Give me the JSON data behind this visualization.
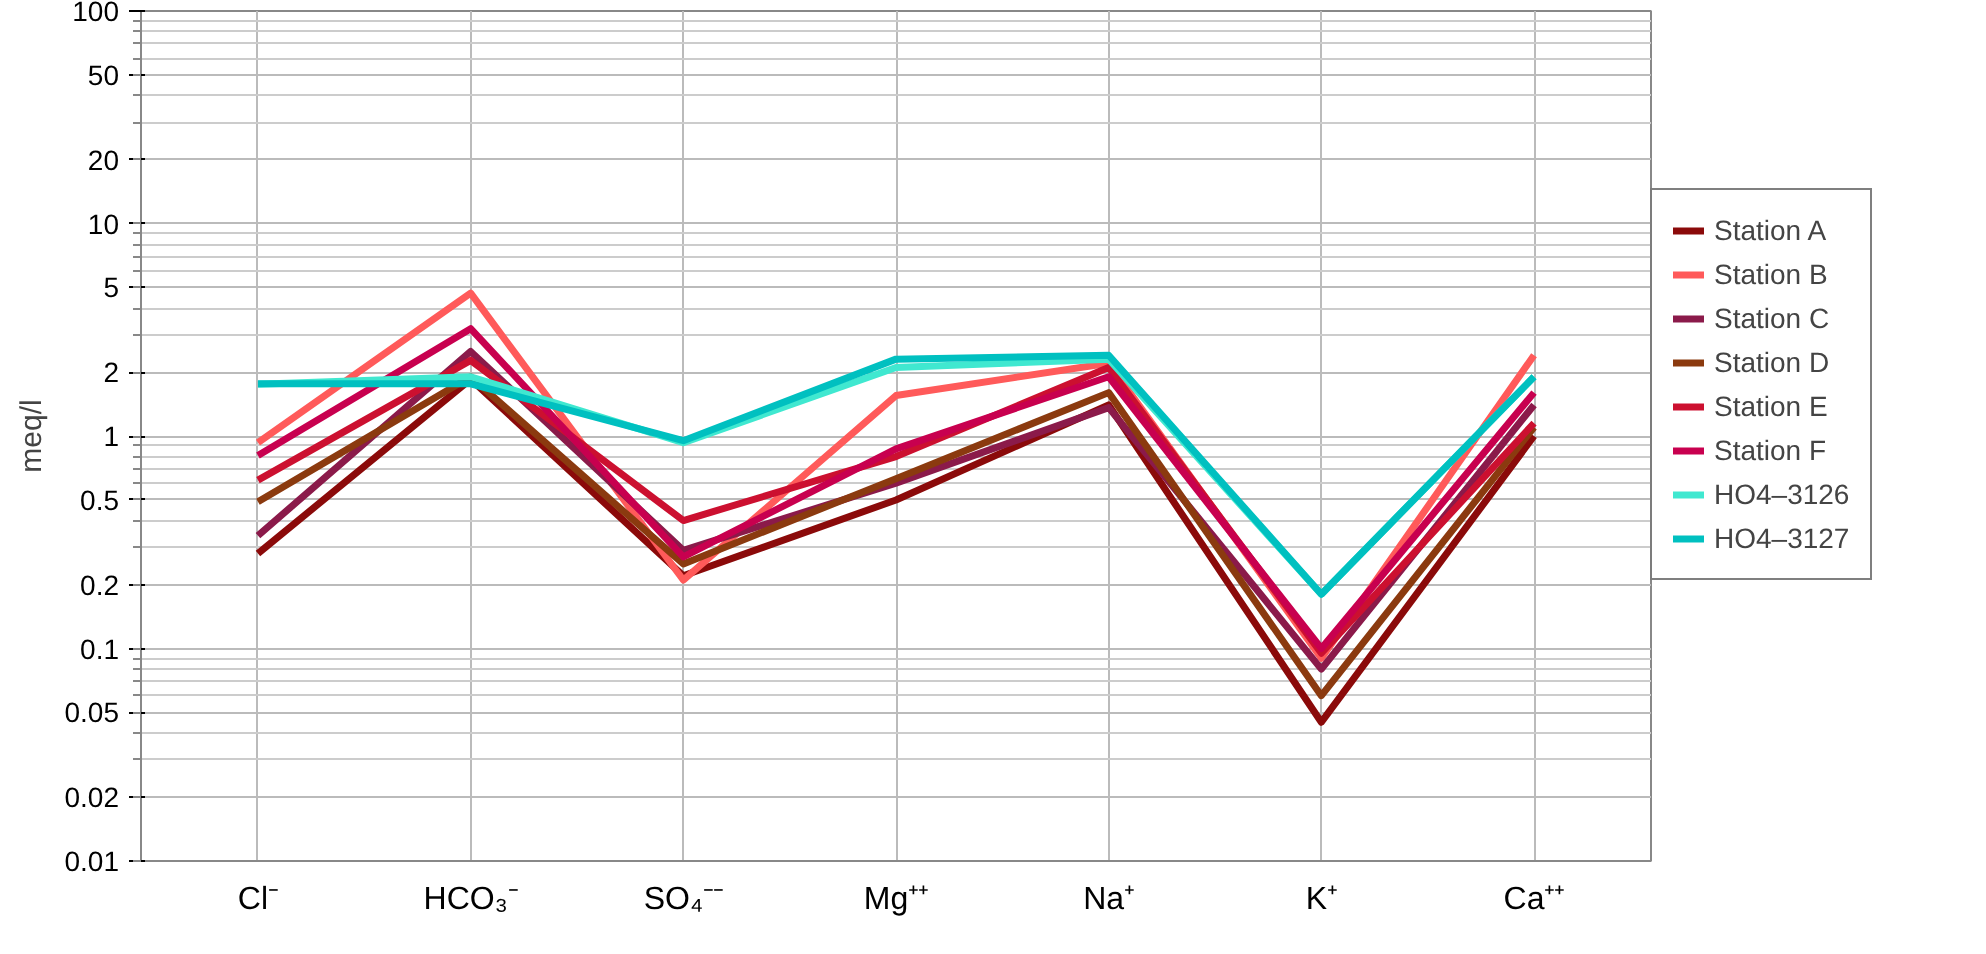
{
  "chart_data": {
    "type": "line",
    "ylabel": "meq/l",
    "log": "y",
    "grid": true,
    "legend": "right",
    "line_style": "solid",
    "marker": "none",
    "categories": [
      "Cl⁻",
      "HCO₃⁻",
      "SO₄⁻⁻",
      "Mg⁺⁺",
      "Na⁺",
      "K⁺",
      "Ca⁺⁺"
    ],
    "ylim": [
      0.01,
      100
    ],
    "yticks": [
      0.01,
      0.02,
      0.05,
      0.1,
      0.2,
      0.5,
      1,
      2,
      5,
      10,
      20,
      50,
      100
    ],
    "series": [
      {
        "name": "Station A",
        "color": "#8b0a0a",
        "values": [
          0.28,
          1.85,
          0.22,
          0.5,
          1.4,
          0.045,
          1.0
        ]
      },
      {
        "name": "Station B",
        "color": "#ff5a5a",
        "values": [
          0.93,
          4.7,
          0.21,
          1.55,
          2.2,
          0.09,
          2.4
        ]
      },
      {
        "name": "Station C",
        "color": "#8b1a4a",
        "values": [
          0.34,
          2.5,
          0.29,
          0.6,
          1.36,
          0.08,
          1.4
        ]
      },
      {
        "name": "Station D",
        "color": "#8b3a0f",
        "values": [
          0.49,
          1.9,
          0.25,
          0.63,
          1.6,
          0.06,
          1.1
        ]
      },
      {
        "name": "Station E",
        "color": "#cc1030",
        "values": [
          0.62,
          2.27,
          0.4,
          0.8,
          2.1,
          0.095,
          1.15
        ]
      },
      {
        "name": "Station F",
        "color": "#c8004f",
        "values": [
          0.81,
          3.2,
          0.27,
          0.87,
          1.9,
          0.1,
          1.6
        ]
      },
      {
        "name": "HO4–3126",
        "color": "#40e8d0",
        "values": [
          1.75,
          1.9,
          0.93,
          2.1,
          2.3,
          0.18,
          1.9
        ]
      },
      {
        "name": "HO4–3127",
        "color": "#00c0c0",
        "values": [
          1.76,
          1.76,
          0.95,
          2.3,
          2.4,
          0.18,
          1.9
        ]
      }
    ]
  }
}
